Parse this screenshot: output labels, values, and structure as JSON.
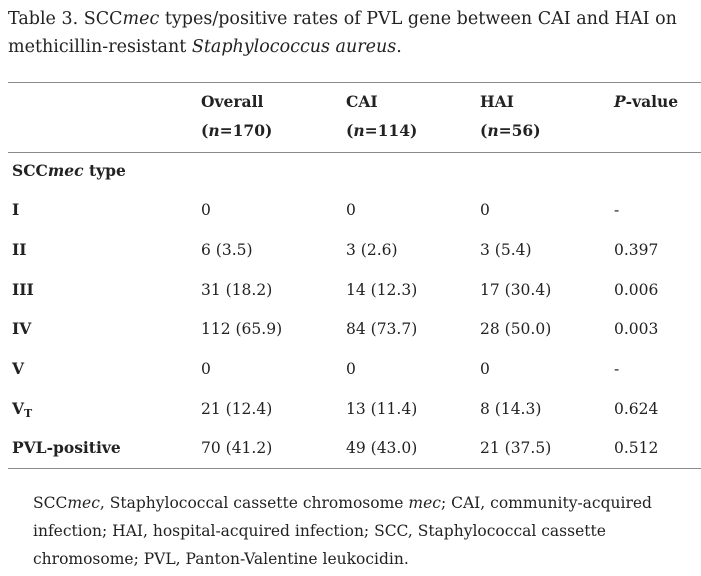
{
  "caption": {
    "label": "Table 3.",
    "pre": "SCC",
    "mec": "mec",
    "mid": "types/positive rates of PVL gene between CAI and HAI on methicillin-resistant",
    "species": "Staphylococcus aureus",
    "end": "."
  },
  "header": {
    "overall": {
      "label": "Overall",
      "n": "170"
    },
    "cai": {
      "label": "CAI",
      "n": "114"
    },
    "hai": {
      "label": "HAI",
      "n": "56"
    },
    "pvalue": {
      "p": "P",
      "rest": "-value"
    },
    "n_symbol": "n"
  },
  "section_label": {
    "pre": "SCC",
    "italic": "mec",
    "post": " type"
  },
  "rows": [
    {
      "label": "I",
      "sub": "",
      "overall": "0",
      "cai": "0",
      "hai": "0",
      "p": "-"
    },
    {
      "label": "II",
      "sub": "",
      "overall": "6 (3.5)",
      "cai": "3 (2.6)",
      "hai": "3 (5.4)",
      "p": "0.397"
    },
    {
      "label": "III",
      "sub": "",
      "overall": "31 (18.2)",
      "cai": "14 (12.3)",
      "hai": "17 (30.4)",
      "p": "0.006"
    },
    {
      "label": "IV",
      "sub": "",
      "overall": "112 (65.9)",
      "cai": "84 (73.7)",
      "hai": "28 (50.0)",
      "p": "0.003"
    },
    {
      "label": "V",
      "sub": "",
      "overall": "0",
      "cai": "0",
      "hai": "0",
      "p": "-"
    },
    {
      "label": "V",
      "sub": "T",
      "overall": "21 (12.4)",
      "cai": "13 (11.4)",
      "hai": "8 (14.3)",
      "p": "0.624"
    },
    {
      "label": "PVL-positive",
      "sub": "",
      "overall": "70 (41.2)",
      "cai": "49 (43.0)",
      "hai": "21 (37.5)",
      "p": "0.512"
    }
  ],
  "footnote": {
    "a": "SCC",
    "b": "mec",
    "c": ", Staphylococcal cassette chromosome ",
    "d": "mec",
    "e": "; CAI, community-acquired infection; HAI, hospital-acquired infection; SCC, Staphylococcal cassette chromosome; PVL, Panton-Valentine leukocidin."
  }
}
